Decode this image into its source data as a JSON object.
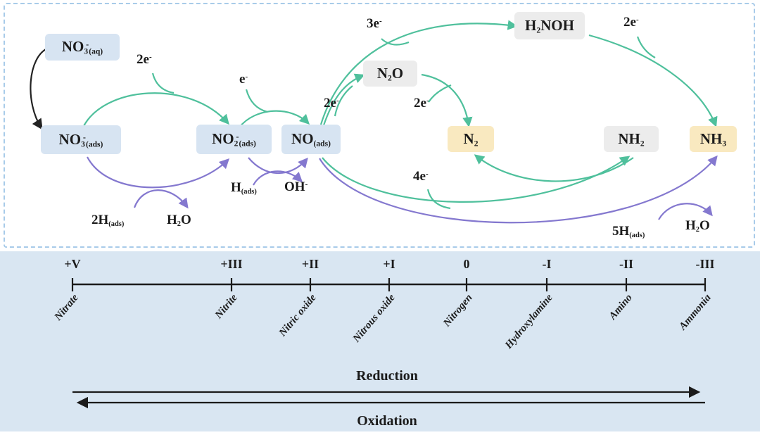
{
  "top_panel": {
    "species": {
      "no3_aq": [
        {
          "t": "NO"
        },
        {
          "t": "3",
          "s": "sub"
        },
        {
          "t": "-",
          "s": "sup"
        },
        {
          "t": "(aq)",
          "s": "sub"
        }
      ],
      "no3_ads": [
        {
          "t": "NO"
        },
        {
          "t": "3",
          "s": "sub"
        },
        {
          "t": "-",
          "s": "sup"
        },
        {
          "t": "(ads)",
          "s": "sub"
        }
      ],
      "no2_ads": [
        {
          "t": "NO"
        },
        {
          "t": "2",
          "s": "sub"
        },
        {
          "t": "-",
          "s": "sup"
        },
        {
          "t": "(ads)",
          "s": "sub"
        }
      ],
      "no_ads": [
        {
          "t": "NO"
        },
        {
          "t": "(ads)",
          "s": "sub"
        }
      ],
      "n2o": [
        {
          "t": "N"
        },
        {
          "t": "2",
          "s": "sub"
        },
        {
          "t": "O"
        }
      ],
      "h2noh": [
        {
          "t": "H"
        },
        {
          "t": "2",
          "s": "sub"
        },
        {
          "t": "NOH"
        }
      ],
      "n2": [
        {
          "t": "N"
        },
        {
          "t": "2",
          "s": "sub"
        }
      ],
      "nh2": [
        {
          "t": "NH"
        },
        {
          "t": "2",
          "s": "sub"
        }
      ],
      "nh3": [
        {
          "t": "NH"
        },
        {
          "t": "3",
          "s": "sub"
        }
      ]
    },
    "labels": {
      "e2_no3_no2": [
        {
          "t": "2e"
        },
        {
          "t": "-",
          "s": "sup"
        }
      ],
      "e1_no2_no": [
        {
          "t": "e"
        },
        {
          "t": "-",
          "s": "sup"
        }
      ],
      "e2_no_n2o": [
        {
          "t": "2e"
        },
        {
          "t": "-",
          "s": "sup"
        }
      ],
      "e3_no_h2noh": [
        {
          "t": "3e"
        },
        {
          "t": "-",
          "s": "sup"
        }
      ],
      "e2_n2o_n2": [
        {
          "t": "2e"
        },
        {
          "t": "-",
          "s": "sup"
        }
      ],
      "e2_h2noh_nh3": [
        {
          "t": "2e"
        },
        {
          "t": "-",
          "s": "sup"
        }
      ],
      "e4_no_nh2": [
        {
          "t": "4e"
        },
        {
          "t": "-",
          "s": "sup"
        }
      ],
      "h2_ads": [
        {
          "t": "2H"
        },
        {
          "t": "(ads)",
          "s": "sub"
        }
      ],
      "h2o_left": [
        {
          "t": "H"
        },
        {
          "t": "2",
          "s": "sub"
        },
        {
          "t": "O"
        }
      ],
      "h_ads": [
        {
          "t": "H"
        },
        {
          "t": "(ads)",
          "s": "sub"
        }
      ],
      "oh": [
        {
          "t": "OH"
        },
        {
          "t": "-",
          "s": "sup"
        }
      ],
      "h5_ads": [
        {
          "t": "5H"
        },
        {
          "t": "(ads)",
          "s": "sub"
        }
      ],
      "h2o_right": [
        {
          "t": "H"
        },
        {
          "t": "2",
          "s": "sub"
        },
        {
          "t": "O"
        }
      ]
    }
  },
  "bottom_panel": {
    "ticks": [
      {
        "state": "+V",
        "name": "Nitrate"
      },
      {
        "state": "+III",
        "name": "Nitrite"
      },
      {
        "state": "+II",
        "name": "Nitric oxide"
      },
      {
        "state": "+I",
        "name": "Nitrous oxide"
      },
      {
        "state": "0",
        "name": "Nitrogen"
      },
      {
        "state": "-I",
        "name": "Hydroxylamine"
      },
      {
        "state": "-II",
        "name": "Amino"
      },
      {
        "state": "-III",
        "name": "Ammonia"
      }
    ],
    "reduction_label": "Reduction",
    "oxidation_label": "Oxidation"
  },
  "colors": {
    "green_arrow": "#4fc09c",
    "purple_arrow": "#8478cf",
    "black_arrow": "#222222",
    "box_blue": "#d7e4f2",
    "box_gray": "#ececec",
    "box_yellow": "#f9e9c0",
    "panel_background": "#d9e6f2",
    "dashed_border": "#a8cbe9"
  }
}
